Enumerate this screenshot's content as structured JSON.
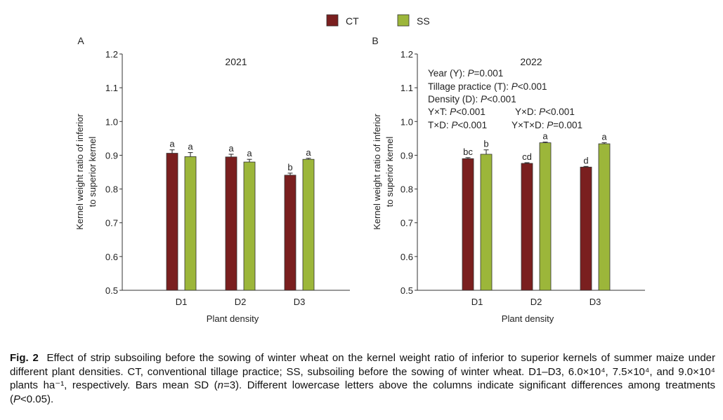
{
  "legend": [
    {
      "label": "CT",
      "color": "#7a1f1f"
    },
    {
      "label": "SS",
      "color": "#9cb63a"
    }
  ],
  "chart_data": [
    {
      "type": "bar",
      "panel_label": "A",
      "title": "2021",
      "xlabel": "Plant density",
      "ylabel_lines": [
        "Kernel weight ratio of inferior",
        "to superior kernel"
      ],
      "ylim": [
        0.5,
        1.2
      ],
      "yticks": [
        "0.5",
        "0.6",
        "0.7",
        "0.8",
        "0.9",
        "1.0",
        "1.1",
        "1.2"
      ],
      "categories": [
        "D1",
        "D2",
        "D3"
      ],
      "series": [
        {
          "name": "CT",
          "values": [
            0.906,
            0.895,
            0.841
          ],
          "errors": [
            0.01,
            0.008,
            0.006
          ],
          "letters": [
            "a",
            "a",
            "b"
          ]
        },
        {
          "name": "SS",
          "values": [
            0.896,
            0.88,
            0.888
          ],
          "errors": [
            0.012,
            0.008,
            0.003
          ],
          "letters": [
            "a",
            "a",
            "a"
          ]
        }
      ],
      "annotations": []
    },
    {
      "type": "bar",
      "panel_label": "B",
      "title": "2022",
      "xlabel": "Plant density",
      "ylabel_lines": [
        "Kernel weight ratio of inferior",
        "to superior kernel"
      ],
      "ylim": [
        0.5,
        1.2
      ],
      "yticks": [
        "0.5",
        "0.6",
        "0.7",
        "0.8",
        "0.9",
        "1.0",
        "1.1",
        "1.2"
      ],
      "categories": [
        "D1",
        "D2",
        "D3"
      ],
      "series": [
        {
          "name": "CT",
          "values": [
            0.89,
            0.876,
            0.865
          ],
          "errors": [
            0.003,
            0.002,
            0.002
          ],
          "letters": [
            "bc",
            "cd",
            "d"
          ]
        },
        {
          "name": "SS",
          "values": [
            0.903,
            0.937,
            0.934
          ],
          "errors": [
            0.013,
            0.002,
            0.003
          ],
          "letters": [
            "b",
            "a",
            "a"
          ]
        }
      ],
      "annotations": [
        {
          "label": "Year (Y): ",
          "p": "P",
          "rest": "=0.001"
        },
        {
          "label": "Tillage practice (T): ",
          "p": "P",
          "rest": "<0.001"
        },
        {
          "label": "Density (D): ",
          "p": "P",
          "rest": "<0.001"
        },
        {
          "label": "Y×T: ",
          "p": "P",
          "rest": "<0.001"
        },
        {
          "label": "Y×D: ",
          "p": "P",
          "rest": "<0.001"
        },
        {
          "label": "T×D: ",
          "p": "P",
          "rest": "<0.001"
        },
        {
          "label": "Y×T×D: ",
          "p": "P",
          "rest": "=0.001"
        }
      ]
    }
  ],
  "caption": {
    "fig_label": "Fig. 2",
    "part1": "Effect of strip subsoiling before the sowing of winter wheat on the kernel weight ratio of inferior to superior kernels of summer maize under different plant densities. CT, conventional tillage practice; SS, subsoiling before the sowing of winter wheat. D1–D3, 6.0×10⁴, 7.5×10⁴, and 9.0×10⁴ plants ha⁻¹, respectively. Bars mean SD (",
    "n_italic": "n",
    "part2": "=3). Different lowercase letters above the columns indicate significant differences among treatments (",
    "p_italic": "P",
    "part3": "<0.05)."
  }
}
